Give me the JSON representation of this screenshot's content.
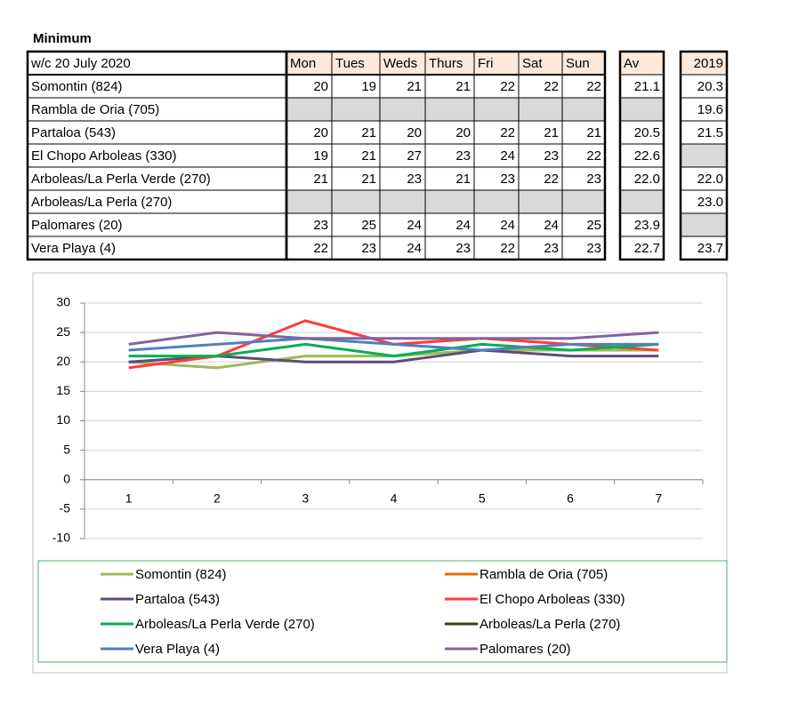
{
  "title": "Minimum",
  "table": {
    "header": {
      "label": "w/c 20 July  2020",
      "days": [
        "Mon",
        "Tues",
        "Weds",
        "Thurs",
        "Fri",
        "Sat",
        "Sun"
      ],
      "av": "Av",
      "year": "2019"
    },
    "rows": [
      {
        "name": "Somontin (824)",
        "days": [
          "20",
          "19",
          "21",
          "21",
          "22",
          "22",
          "22"
        ],
        "av": "21.1",
        "year": "20.3"
      },
      {
        "name": "Rambla de Oria (705)",
        "days": [
          null,
          null,
          null,
          null,
          null,
          null,
          null
        ],
        "av": null,
        "year": "19.6"
      },
      {
        "name": "Partaloa (543)",
        "days": [
          "20",
          "21",
          "20",
          "20",
          "22",
          "21",
          "21"
        ],
        "av": "20.5",
        "year": "21.5"
      },
      {
        "name": "El Chopo Arboleas (330)",
        "days": [
          "19",
          "21",
          "27",
          "23",
          "24",
          "23",
          "22"
        ],
        "av": "22.6",
        "year": null
      },
      {
        "name": "Arboleas/La Perla Verde (270)",
        "days": [
          "21",
          "21",
          "23",
          "21",
          "23",
          "22",
          "23"
        ],
        "av": "22.0",
        "year": "22.0"
      },
      {
        "name": "Arboleas/La Perla (270)",
        "days": [
          null,
          null,
          null,
          null,
          null,
          null,
          null
        ],
        "av": null,
        "year": "23.0"
      },
      {
        "name": "Palomares (20)",
        "days": [
          "23",
          "25",
          "24",
          "24",
          "24",
          "24",
          "25"
        ],
        "av": "23.9",
        "year": null
      },
      {
        "name": "Vera Playa (4)",
        "days": [
          "22",
          "23",
          "24",
          "23",
          "22",
          "23",
          "23"
        ],
        "av": "22.7",
        "year": "23.7"
      }
    ]
  },
  "chart_data": {
    "type": "line",
    "categories": [
      1,
      2,
      3,
      4,
      5,
      6,
      7
    ],
    "ylim": [
      -10,
      30
    ],
    "yticks": [
      -10,
      -5,
      0,
      5,
      10,
      15,
      20,
      25,
      30
    ],
    "grid": true,
    "legend": "bottom",
    "series": [
      {
        "name": "Somontin (824)",
        "color": "#9bbb59",
        "values": [
          20,
          19,
          21,
          21,
          22,
          22,
          22
        ]
      },
      {
        "name": "Rambla de Oria (705)",
        "color": "#e36c09",
        "values": [
          null,
          null,
          null,
          null,
          null,
          null,
          null
        ]
      },
      {
        "name": "Partaloa (543)",
        "color": "#604a7b",
        "values": [
          20,
          21,
          20,
          20,
          22,
          21,
          21
        ]
      },
      {
        "name": "El Chopo Arboleas (330)",
        "color": "#ff3b3b",
        "values": [
          19,
          21,
          27,
          23,
          24,
          23,
          22
        ]
      },
      {
        "name": "Arboleas/La Perla Verde (270)",
        "color": "#00b050",
        "values": [
          21,
          21,
          23,
          21,
          23,
          22,
          23
        ]
      },
      {
        "name": "Arboleas/La Perla (270)",
        "color": "#3d3d1f",
        "values": [
          null,
          null,
          null,
          null,
          null,
          null,
          null
        ]
      },
      {
        "name": "Vera Playa (4)",
        "color": "#4f81bd",
        "values": [
          22,
          23,
          24,
          23,
          22,
          23,
          23
        ]
      },
      {
        "name": "Palomares (20)",
        "color": "#8064a2",
        "values": [
          23,
          25,
          24,
          24,
          24,
          24,
          25
        ]
      }
    ]
  }
}
